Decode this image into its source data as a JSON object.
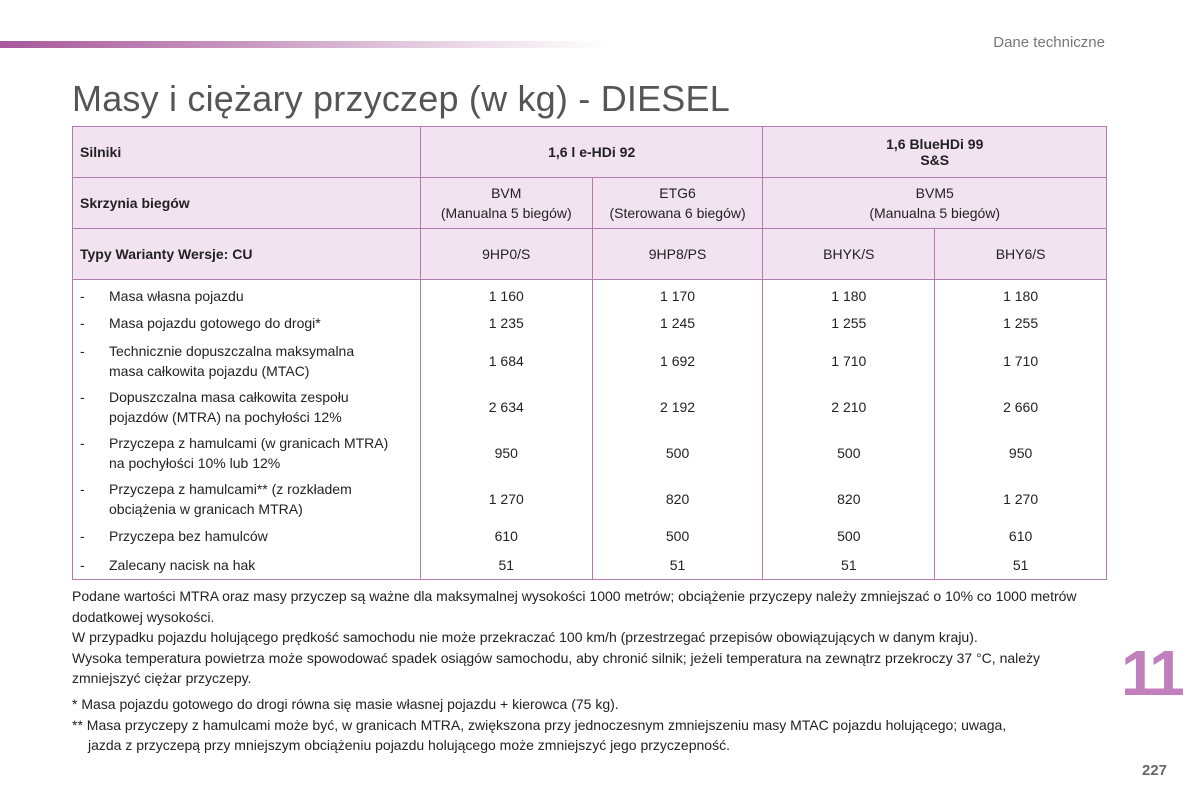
{
  "header": {
    "section_label": "Dane techniczne",
    "title": "Masy i ciężary przyczep (w kg) - DIESEL"
  },
  "table": {
    "engines_label": "Silniki",
    "engine_a": "1,6 l e-HDi 92",
    "engine_b_line1": "1,6 BlueHDi 99",
    "engine_b_line2": "S&S",
    "gearbox_label": "Skrzynia biegów",
    "gearbox": [
      {
        "line1": "BVM",
        "line2": "(Manualna 5 biegów)"
      },
      {
        "line1": "ETG6",
        "line2": "(Sterowana 6 biegów)"
      },
      {
        "line1": "BVM5",
        "line2": "(Manualna 5 biegów)"
      }
    ],
    "types_label": "Typy Warianty Wersje: CU",
    "types": [
      "9HP0/S",
      "9HP8/PS",
      "BHYK/S",
      "BHY6/S"
    ],
    "rows": [
      {
        "dash": "-",
        "label": "Masa własna pojazdu",
        "values": [
          "1 160",
          "1 170",
          "1 180",
          "1 180"
        ]
      },
      {
        "dash": "-",
        "label": "Masa pojazdu gotowego do drogi*",
        "values": [
          "1 235",
          "1 245",
          "1 255",
          "1 255"
        ]
      },
      {
        "dash": "-",
        "label": "Technicznie dopuszczalna maksymalna masa całkowita pojazdu (MTAC)",
        "values": [
          "1 684",
          "1 692",
          "1 710",
          "1 710"
        ]
      },
      {
        "dash": "-",
        "label": "Dopuszczalna masa całkowita zespołu pojazdów (MTRA) na pochyłości 12%",
        "values": [
          "2 634",
          "2 192",
          "2 210",
          "2 660"
        ]
      },
      {
        "dash": "-",
        "label": "Przyczepa z hamulcami (w granicach MTRA) na pochyłości 10% lub 12%",
        "values": [
          "950",
          "500",
          "500",
          "950"
        ]
      },
      {
        "dash": "-",
        "label": "Przyczepa z hamulcami** (z rozkładem obciążenia w granicach MTRA)",
        "values": [
          "1 270",
          "820",
          "820",
          "1 270"
        ]
      },
      {
        "dash": "-",
        "label": "Przyczepa bez hamulców",
        "values": [
          "610",
          "500",
          "500",
          "610"
        ]
      },
      {
        "dash": "-",
        "label": "Zalecany nacisk na hak",
        "values": [
          "51",
          "51",
          "51",
          "51"
        ]
      }
    ]
  },
  "notes": [
    "Podane wartości MTRA oraz masy przyczep są ważne dla maksymalnej wysokości 1000 metrów; obciążenie przyczepy należy zmniejszać o 10% co 1000 metrów dodatkowej wysokości.",
    "W przypadku pojazdu holującego prędkość samochodu nie może przekraczać 100 km/h (przestrzegać przepisów obowiązujących w danym kraju).",
    "Wysoka temperatura powietrza może spowodować spadek osiągów samochodu, aby chronić silnik; jeżeli temperatura na zewnątrz przekroczy 37 °C, należy zmniejszyć ciężar przyczepy."
  ],
  "footnotes": {
    "fn1": "* Masa pojazdu gotowego do drogi równa się masie własnej pojazdu + kierowca (75 kg).",
    "fn2_line1": "** Masa przyczepy z hamulcami może być, w granicach MTRA, zwiększona przy jednoczesnym zmniejszeniu masy MTAC pojazdu holującego; uwaga,",
    "fn2_line2": "jazda z przyczepą przy mniejszym obciążeniu pojazdu holującego może zmniejszyć jego przyczepność."
  },
  "chapter_number": "11",
  "page_number": "227"
}
